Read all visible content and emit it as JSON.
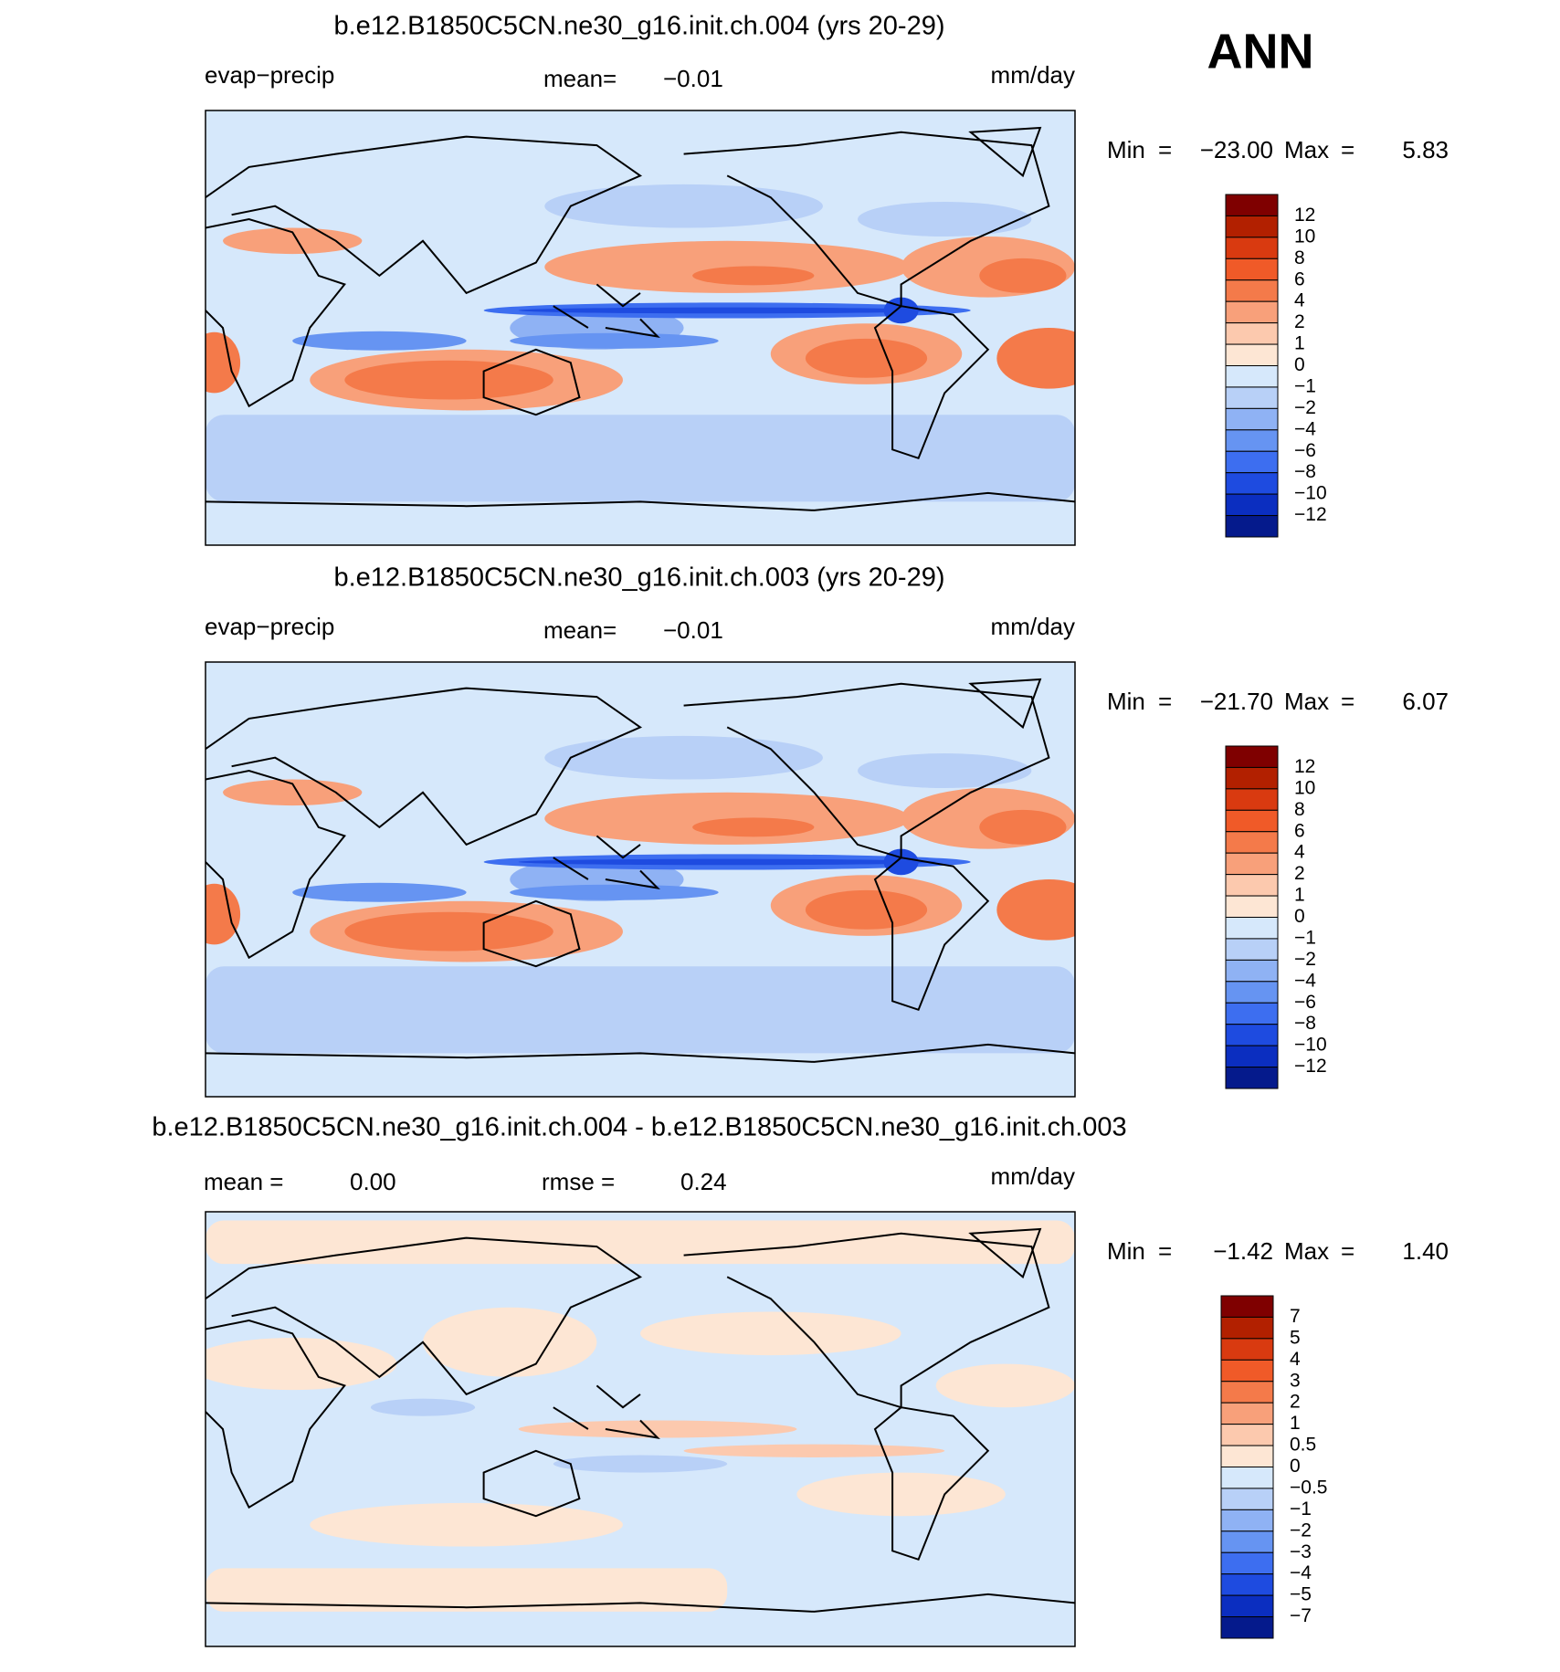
{
  "header": {
    "season": "ANN"
  },
  "panels": [
    {
      "title": "b.e12.B1850C5CN.ne30_g16.init.ch.004 (yrs 20-29)",
      "left_label": "evap−precip",
      "stats": [
        {
          "label": "mean=",
          "value": "−0.01"
        }
      ],
      "units": "mm/day",
      "min_max": {
        "min_label": "Min",
        "min_eq": "=",
        "min": "−23.00",
        "max_label": "Max",
        "max_eq": "=",
        "max": "5.83"
      },
      "colorbar": {
        "labels": [
          "12",
          "10",
          "8",
          "6",
          "4",
          "2",
          "1",
          "0",
          "−1",
          "−2",
          "−4",
          "−6",
          "−8",
          "−10",
          "−12"
        ],
        "colors": [
          "#7f0000",
          "#b22000",
          "#d93a10",
          "#f05a28",
          "#f47a4a",
          "#f8a07a",
          "#fcc9ae",
          "#fde6d4",
          "#d6e8fb",
          "#b8d0f7",
          "#8fb2f4",
          "#6694f2",
          "#3d6ef0",
          "#1e4be0",
          "#0b2ec0",
          "#051a8c"
        ]
      }
    },
    {
      "title": "b.e12.B1850C5CN.ne30_g16.init.ch.003 (yrs 20-29)",
      "left_label": "evap−precip",
      "stats": [
        {
          "label": "mean=",
          "value": "−0.01"
        }
      ],
      "units": "mm/day",
      "min_max": {
        "min_label": "Min",
        "min_eq": "=",
        "min": "−21.70",
        "max_label": "Max",
        "max_eq": "=",
        "max": "6.07"
      },
      "colorbar": {
        "labels": [
          "12",
          "10",
          "8",
          "6",
          "4",
          "2",
          "1",
          "0",
          "−1",
          "−2",
          "−4",
          "−6",
          "−8",
          "−10",
          "−12"
        ],
        "colors": [
          "#7f0000",
          "#b22000",
          "#d93a10",
          "#f05a28",
          "#f47a4a",
          "#f8a07a",
          "#fcc9ae",
          "#fde6d4",
          "#d6e8fb",
          "#b8d0f7",
          "#8fb2f4",
          "#6694f2",
          "#3d6ef0",
          "#1e4be0",
          "#0b2ec0",
          "#051a8c"
        ]
      }
    },
    {
      "title": "b.e12.B1850C5CN.ne30_g16.init.ch.004 - b.e12.B1850C5CN.ne30_g16.init.ch.003",
      "stats": [
        {
          "label": "mean =",
          "value": "0.00"
        },
        {
          "label": "rmse =",
          "value": "0.24"
        }
      ],
      "units": "mm/day",
      "min_max": {
        "min_label": "Min",
        "min_eq": "=",
        "min": "−1.42",
        "max_label": "Max",
        "max_eq": "=",
        "max": "1.40"
      },
      "colorbar": {
        "labels": [
          "7",
          "5",
          "4",
          "3",
          "2",
          "1",
          "0.5",
          "0",
          "−0.5",
          "−1",
          "−2",
          "−3",
          "−4",
          "−5",
          "−7"
        ],
        "colors": [
          "#7f0000",
          "#b22000",
          "#d93a10",
          "#f05a28",
          "#f47a4a",
          "#f8a07a",
          "#fcc9ae",
          "#fde6d4",
          "#d6e8fb",
          "#b8d0f7",
          "#8fb2f4",
          "#6694f2",
          "#3d6ef0",
          "#1e4be0",
          "#0b2ec0",
          "#051a8c"
        ]
      }
    }
  ]
}
